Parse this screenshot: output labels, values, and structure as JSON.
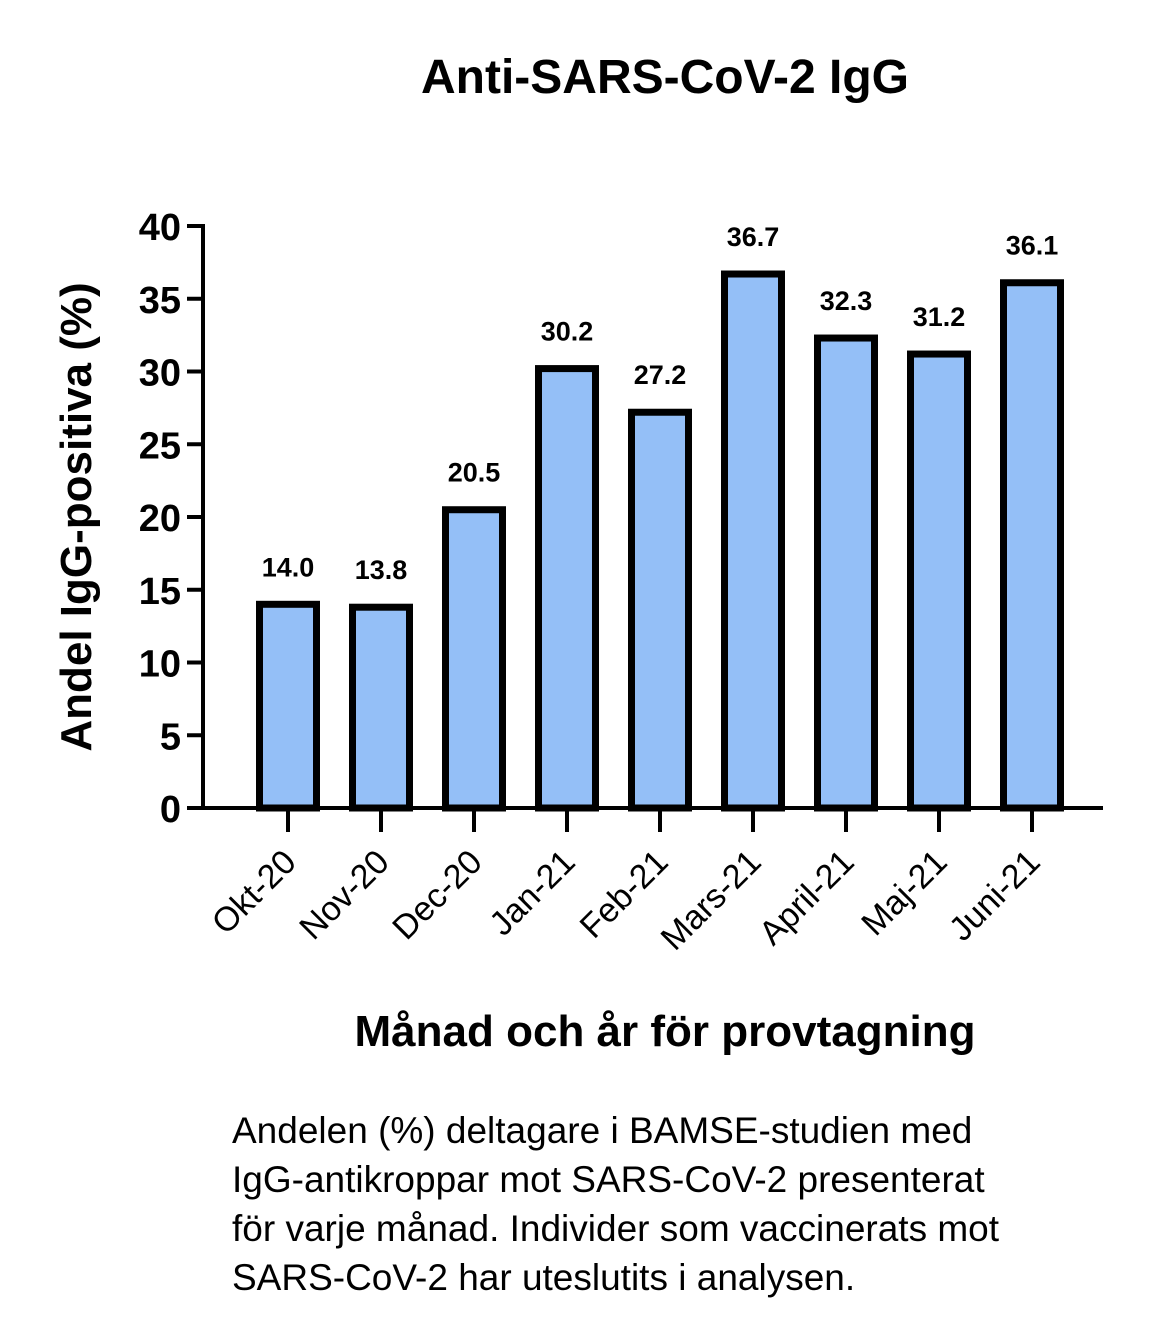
{
  "chart_data": {
    "type": "bar",
    "title": "Anti-SARS-CoV-2 IgG",
    "xlabel": "Månad och år för provtagning",
    "ylabel": "Andel IgG-positiva (%)",
    "categories": [
      "Okt-20",
      "Nov-20",
      "Dec-20",
      "Jan-21",
      "Feb-21",
      "Mars-21",
      "April-21",
      "Maj-21",
      "Juni-21"
    ],
    "values": [
      14.0,
      13.8,
      20.5,
      30.2,
      27.2,
      36.7,
      32.3,
      31.2,
      36.1
    ],
    "data_labels": [
      "14.0",
      "13.8",
      "20.5",
      "30.2",
      "27.2",
      "36.7",
      "32.3",
      "31.2",
      "36.1"
    ],
    "ylim": [
      0,
      40
    ],
    "yticks": [
      0,
      5,
      10,
      15,
      20,
      25,
      30,
      35,
      40
    ],
    "grid": false,
    "legend": "none",
    "bar_color": "#94bff7",
    "bar_edge_color": "#000000"
  },
  "caption": {
    "lines": [
      "Andelen (%) deltagare i BAMSE-studien med",
      "IgG-antikroppar mot SARS-CoV-2 presenterat",
      "för varje månad. Individer som vaccinerats mot",
      "SARS-CoV-2 har uteslutits i analysen."
    ]
  }
}
